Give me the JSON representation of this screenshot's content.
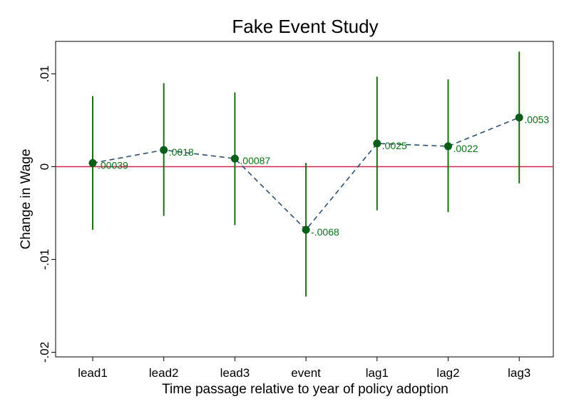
{
  "chart_data": {
    "type": "scatter",
    "title": "Fake Event Study",
    "xlabel": "Time passage relative to year of policy adoption",
    "ylabel": "Change in Wage",
    "categories": [
      "lead1",
      "lead2",
      "lead3",
      "event",
      "lag1",
      "lag2",
      "lag3"
    ],
    "values": [
      0.00039,
      0.0018,
      0.00087,
      -0.0068,
      0.0025,
      0.0022,
      0.0053
    ],
    "value_labels": [
      ".00039",
      ".0018",
      ".00087",
      "-.0068",
      ".0025",
      ".0022",
      ".0053"
    ],
    "ci_low": [
      -0.0068,
      -0.0053,
      -0.0063,
      -0.014,
      -0.0047,
      -0.0049,
      -0.0018
    ],
    "ci_high": [
      0.0076,
      0.009,
      0.008,
      0.0004,
      0.0097,
      0.0094,
      0.0124
    ],
    "ylim": [
      -0.0205,
      0.0135
    ],
    "yticks": [
      -0.02,
      -0.01,
      0,
      0.01
    ],
    "ytick_labels": [
      "-.02",
      "-.01",
      "0",
      ".01"
    ],
    "reference_line": 0,
    "connect_points": "dashed",
    "grid": false,
    "colors": {
      "point": "#0b5e17",
      "ci": "#1a6e14",
      "connector": "#2e4f70",
      "zero_line": "#c8264e",
      "label": "#0b6e17"
    }
  }
}
